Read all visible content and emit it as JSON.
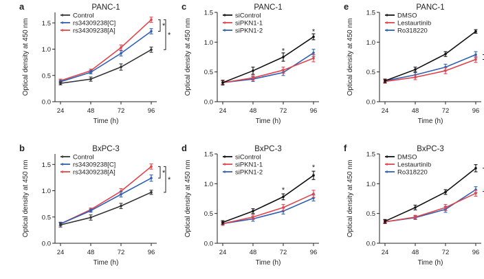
{
  "chart_data": [
    {
      "panel": "a",
      "title": "PANC-1",
      "type": "line",
      "xlabel": "Time (h)",
      "ylabel": "Optical density at 450 nm",
      "x": [
        24,
        48,
        72,
        96
      ],
      "xticks": [
        "24",
        "48",
        "72",
        "96"
      ],
      "ylim": [
        0.0,
        1.7
      ],
      "yticks": [
        "0.0",
        "0.5",
        "1.0",
        "1.5"
      ],
      "series": [
        {
          "name": "Control",
          "color": "#333333",
          "values": [
            0.35,
            0.43,
            0.66,
            0.99
          ],
          "err": [
            0.03,
            0.04,
            0.06,
            0.05
          ]
        },
        {
          "name": "rs34309238[C]",
          "color": "#2f5fb4",
          "values": [
            0.38,
            0.56,
            0.92,
            1.34
          ],
          "err": [
            0.03,
            0.03,
            0.05,
            0.05
          ]
        },
        {
          "name": "rs34309238[A]",
          "color": "#e0454b",
          "values": [
            0.4,
            0.59,
            1.03,
            1.56
          ],
          "err": [
            0.03,
            0.03,
            0.05,
            0.05
          ]
        }
      ],
      "legend": "top-left",
      "brackets": [
        {
          "label": "*",
          "from": 1.56,
          "to": 1.34,
          "level": 1
        },
        {
          "label": "*",
          "from": 1.56,
          "to": 0.99,
          "level": 2
        }
      ],
      "stars": []
    },
    {
      "panel": "c",
      "title": "PANC-1",
      "type": "line",
      "xlabel": "Time (h)",
      "ylabel": "Optical density at 450 nm",
      "x": [
        24,
        48,
        72,
        96
      ],
      "xticks": [
        "24",
        "48",
        "72",
        "96"
      ],
      "ylim": [
        0.0,
        1.5
      ],
      "yticks": [
        "0.0",
        "0.5",
        "1.0",
        "1.5"
      ],
      "series": [
        {
          "name": "siControl",
          "color": "#111111",
          "values": [
            0.32,
            0.52,
            0.75,
            1.09
          ],
          "err": [
            0.04,
            0.06,
            0.07,
            0.05
          ]
        },
        {
          "name": "siPKN1-1",
          "color": "#e0454b",
          "values": [
            0.32,
            0.4,
            0.53,
            0.73
          ],
          "err": [
            0.03,
            0.04,
            0.05,
            0.06
          ]
        },
        {
          "name": "siPKN1-2",
          "color": "#2f5fb4",
          "values": [
            0.32,
            0.38,
            0.49,
            0.82
          ],
          "err": [
            0.03,
            0.04,
            0.05,
            0.06
          ]
        }
      ],
      "legend": "top-left",
      "brackets": [],
      "stars": [
        {
          "x": 72,
          "y": 0.85,
          "label": "*"
        },
        {
          "x": 96,
          "y": 1.17,
          "label": "*"
        }
      ]
    },
    {
      "panel": "e",
      "title": "PANC-1",
      "type": "line",
      "xlabel": "Time (h)",
      "ylabel": "Optical density at 450 nm",
      "x": [
        24,
        48,
        72,
        96
      ],
      "xticks": [
        "24",
        "48",
        "72",
        "96"
      ],
      "ylim": [
        0.0,
        1.5
      ],
      "yticks": [
        "0.0",
        "0.5",
        "1.0",
        "1.5"
      ],
      "series": [
        {
          "name": "DMSO",
          "color": "#111111",
          "values": [
            0.35,
            0.54,
            0.8,
            1.18
          ],
          "err": [
            0.03,
            0.04,
            0.04,
            0.03
          ]
        },
        {
          "name": "Lestaurtinib",
          "color": "#e0454b",
          "values": [
            0.34,
            0.41,
            0.52,
            0.71
          ],
          "err": [
            0.03,
            0.04,
            0.05,
            0.05
          ]
        },
        {
          "name": "Ro318220",
          "color": "#2f5fb4",
          "values": [
            0.35,
            0.45,
            0.58,
            0.79
          ],
          "err": [
            0.03,
            0.04,
            0.05,
            0.05
          ]
        }
      ],
      "legend": "top-left",
      "brackets": [
        {
          "label": "**",
          "from": 1.18,
          "to": 0.79,
          "level": 2
        },
        {
          "label": "",
          "from": 0.79,
          "to": 0.71,
          "level": 1
        }
      ],
      "stars": []
    },
    {
      "panel": "b",
      "title": "BxPC-3",
      "type": "line",
      "xlabel": "Time (h)",
      "ylabel": "Optical density at 450 nm",
      "x": [
        24,
        48,
        72,
        96
      ],
      "xticks": [
        "24",
        "48",
        "72",
        "96"
      ],
      "ylim": [
        0.0,
        1.7
      ],
      "yticks": [
        "0.0",
        "0.5",
        "1.0",
        "1.5"
      ],
      "series": [
        {
          "name": "Control",
          "color": "#333333",
          "values": [
            0.35,
            0.49,
            0.71,
            0.97
          ],
          "err": [
            0.04,
            0.05,
            0.05,
            0.04
          ]
        },
        {
          "name": "rs34309238[C]",
          "color": "#2f5fb4",
          "values": [
            0.37,
            0.62,
            0.93,
            1.24
          ],
          "err": [
            0.03,
            0.03,
            0.05,
            0.06
          ]
        },
        {
          "name": "rs34309238[A]",
          "color": "#e0454b",
          "values": [
            0.37,
            0.64,
            0.99,
            1.46
          ],
          "err": [
            0.03,
            0.03,
            0.05,
            0.05
          ]
        }
      ],
      "legend": "top-left",
      "brackets": [
        {
          "label": "*",
          "from": 1.46,
          "to": 1.24,
          "level": 1
        },
        {
          "label": "*",
          "from": 1.46,
          "to": 0.97,
          "level": 2
        }
      ],
      "stars": []
    },
    {
      "panel": "d",
      "title": "BxPC-3",
      "type": "line",
      "xlabel": "Time (h)",
      "ylabel": "Optical density at 450 nm",
      "x": [
        24,
        48,
        72,
        96
      ],
      "xticks": [
        "24",
        "48",
        "72",
        "96"
      ],
      "ylim": [
        0.0,
        1.5
      ],
      "yticks": [
        "0.0",
        "0.5",
        "1.0",
        "1.5"
      ],
      "series": [
        {
          "name": "siControl",
          "color": "#111111",
          "values": [
            0.35,
            0.54,
            0.78,
            1.14
          ],
          "err": [
            0.03,
            0.04,
            0.05,
            0.07
          ]
        },
        {
          "name": "siPKN1-1",
          "color": "#e0454b",
          "values": [
            0.33,
            0.44,
            0.6,
            0.83
          ],
          "err": [
            0.03,
            0.04,
            0.05,
            0.06
          ]
        },
        {
          "name": "siPKN1-2",
          "color": "#2f5fb4",
          "values": [
            0.33,
            0.41,
            0.54,
            0.76
          ],
          "err": [
            0.03,
            0.04,
            0.05,
            0.05
          ]
        }
      ],
      "legend": "top-left",
      "brackets": [],
      "stars": [
        {
          "x": 72,
          "y": 0.89,
          "label": "*"
        },
        {
          "x": 96,
          "y": 1.27,
          "label": "*"
        }
      ]
    },
    {
      "panel": "f",
      "title": "BxPC-3",
      "type": "line",
      "xlabel": "Time (h)",
      "ylabel": "Optical density at 450 nm",
      "x": [
        24,
        48,
        72,
        96
      ],
      "xticks": [
        "24",
        "48",
        "72",
        "96"
      ],
      "ylim": [
        0.0,
        1.5
      ],
      "yticks": [
        "0.0",
        "0.5",
        "1.0",
        "1.5"
      ],
      "series": [
        {
          "name": "DMSO",
          "color": "#111111",
          "values": [
            0.37,
            0.6,
            0.86,
            1.26
          ],
          "err": [
            0.03,
            0.04,
            0.04,
            0.06
          ]
        },
        {
          "name": "Lestaurtinib",
          "color": "#e0454b",
          "values": [
            0.36,
            0.44,
            0.6,
            0.84
          ],
          "err": [
            0.03,
            0.03,
            0.05,
            0.05
          ]
        },
        {
          "name": "Ro318220",
          "color": "#2f5fb4",
          "values": [
            0.36,
            0.43,
            0.57,
            0.9
          ],
          "err": [
            0.03,
            0.03,
            0.05,
            0.05
          ]
        }
      ],
      "legend": "top-left",
      "brackets": [
        {
          "label": "**",
          "from": 1.26,
          "to": 0.87,
          "level": 1
        }
      ],
      "stars": []
    }
  ]
}
